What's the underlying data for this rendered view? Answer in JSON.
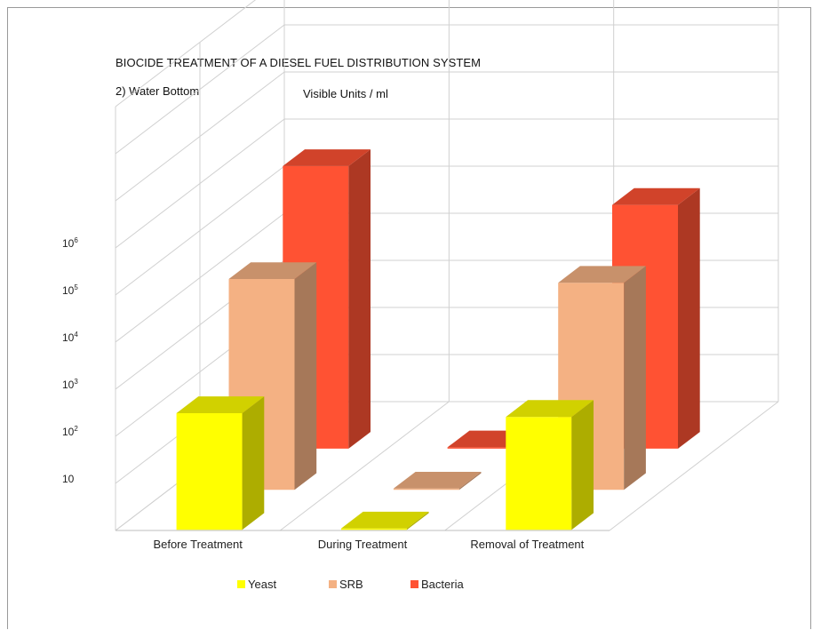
{
  "chart_data": {
    "type": "bar",
    "title": "BIOCIDE  TREATMENT  OF A DIESEL FUEL DISTRIBUTION  SYSTEM",
    "subtitle": "2) Water Bottom",
    "ylabel": "Visible Units / ml",
    "yscale": "log",
    "yticks": [
      {
        "base": "10",
        "exp": ""
      },
      {
        "base": "10",
        "exp": "2"
      },
      {
        "base": "10",
        "exp": "3"
      },
      {
        "base": "10",
        "exp": "4"
      },
      {
        "base": "10",
        "exp": "5"
      },
      {
        "base": "10",
        "exp": "6"
      }
    ],
    "categories": [
      "Before Treatment",
      "During Treatment",
      "Removal of Treatment"
    ],
    "series": [
      {
        "name": "Yeast",
        "values": [
          300,
          1,
          250
        ],
        "color": "#ffff00"
      },
      {
        "name": "SRB",
        "values": [
          30000,
          1,
          25000
        ],
        "color": "#f4b183"
      },
      {
        "name": "Bacteria",
        "values": [
          1000000,
          1,
          150000
        ],
        "color": "#ff5233"
      }
    ],
    "grid": true,
    "legend_position": "bottom"
  }
}
